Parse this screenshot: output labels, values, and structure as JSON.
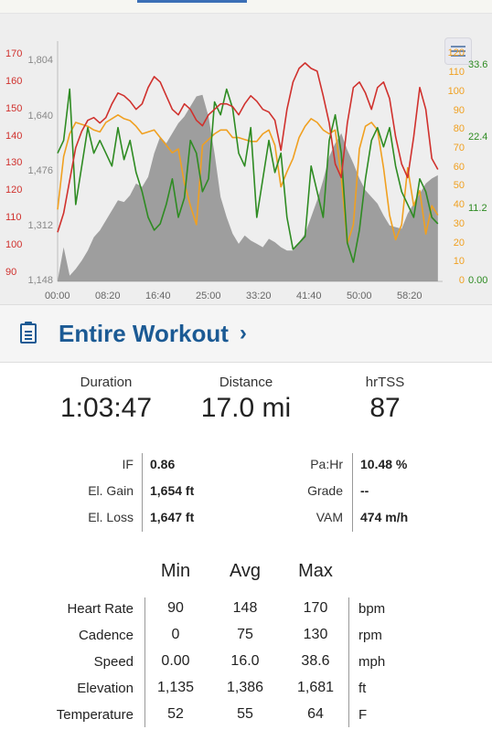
{
  "chart": {
    "hr_ticks": [
      "170",
      "160",
      "150",
      "140",
      "130",
      "120",
      "110",
      "100",
      "90"
    ],
    "elev_ticks": [
      "1,804",
      "1,640",
      "1,476",
      "1,312",
      "1,148"
    ],
    "cad_ticks": [
      "120",
      "110",
      "100",
      "90",
      "80",
      "70",
      "60",
      "50",
      "40",
      "30",
      "20",
      "10",
      "0"
    ],
    "speed_ticks": [
      "33.6",
      "22.4",
      "11.2",
      "0.00"
    ],
    "time_ticks": [
      "00:00",
      "08:20",
      "16:40",
      "25:00",
      "33:20",
      "41:40",
      "50:00",
      "58:20"
    ],
    "colors": {
      "hr": "#d0312d",
      "cadence": "#f0a020",
      "speed": "#2e8b22",
      "elevation": "#8f8f8f"
    }
  },
  "chart_data": {
    "type": "line",
    "x_unit": "time (mm:ss)",
    "xlim": [
      0,
      3827
    ],
    "x": [
      0,
      60,
      120,
      180,
      240,
      300,
      360,
      420,
      480,
      540,
      600,
      660,
      720,
      780,
      840,
      900,
      960,
      1020,
      1080,
      1140,
      1200,
      1260,
      1320,
      1380,
      1440,
      1500,
      1560,
      1620,
      1680,
      1740,
      1800,
      1860,
      1920,
      1980,
      2040,
      2100,
      2160,
      2220,
      2280,
      2340,
      2400,
      2460,
      2520,
      2580,
      2640,
      2700,
      2760,
      2820,
      2880,
      2940,
      3000,
      3060,
      3120,
      3180,
      3240,
      3300,
      3360,
      3420,
      3480,
      3540,
      3600,
      3660,
      3720,
      3780
    ],
    "series": [
      {
        "name": "Heart Rate",
        "axis": "hr",
        "ylim": [
          87,
          175
        ],
        "values": [
          105,
          112,
          124,
          136,
          142,
          146,
          147,
          145,
          147,
          152,
          156,
          155,
          153,
          150,
          152,
          158,
          162,
          160,
          155,
          150,
          148,
          152,
          150,
          146,
          144,
          148,
          150,
          152,
          152,
          151,
          148,
          152,
          155,
          153,
          150,
          149,
          146,
          135,
          150,
          160,
          165,
          167,
          165,
          164,
          155,
          145,
          130,
          125,
          145,
          158,
          160,
          156,
          150,
          158,
          160,
          154,
          140,
          130,
          125,
          140,
          158,
          150,
          132,
          128
        ]
      },
      {
        "name": "Cadence",
        "axis": "cadence",
        "ylim": [
          0,
          127
        ],
        "values": [
          38,
          66,
          78,
          84,
          83,
          82,
          80,
          79,
          84,
          86,
          88,
          86,
          85,
          82,
          78,
          79,
          80,
          76,
          72,
          68,
          70,
          52,
          40,
          30,
          72,
          75,
          78,
          80,
          80,
          76,
          76,
          75,
          74,
          74,
          78,
          80,
          72,
          50,
          58,
          65,
          76,
          82,
          86,
          84,
          80,
          78,
          80,
          55,
          20,
          30,
          70,
          82,
          84,
          80,
          60,
          35,
          22,
          30,
          60,
          40,
          48,
          25,
          40,
          35
        ]
      },
      {
        "name": "Speed",
        "axis": "speed",
        "ylim": [
          0,
          37.5
        ],
        "values": [
          20,
          22,
          30,
          12,
          18,
          24,
          20,
          22,
          20,
          18,
          24,
          19,
          22,
          17,
          14,
          10,
          8,
          9,
          12,
          16,
          10,
          13,
          22,
          20,
          14,
          16,
          28,
          26,
          30,
          27,
          20,
          18,
          24,
          10,
          16,
          22,
          17,
          20,
          10,
          5,
          6,
          7,
          18,
          14,
          10,
          22,
          26,
          20,
          6,
          3,
          8,
          16,
          22,
          24,
          21,
          24,
          18,
          14,
          12,
          10,
          16,
          14,
          10,
          9
        ]
      },
      {
        "name": "Elevation",
        "axis": "elevation",
        "ylim": [
          1148,
          1865
        ],
        "values": [
          1150,
          1250,
          1165,
          1185,
          1210,
          1240,
          1280,
          1300,
          1330,
          1360,
          1390,
          1385,
          1405,
          1440,
          1430,
          1460,
          1530,
          1580,
          1560,
          1590,
          1620,
          1640,
          1670,
          1700,
          1705,
          1640,
          1530,
          1400,
          1340,
          1290,
          1260,
          1285,
          1270,
          1260,
          1250,
          1275,
          1265,
          1250,
          1240,
          1240,
          1265,
          1290,
          1340,
          1390,
          1450,
          1520,
          1560,
          1590,
          1540,
          1500,
          1455,
          1420,
          1400,
          1380,
          1345,
          1315,
          1310,
          1305,
          1350,
          1380,
          1410,
          1440,
          1455,
          1465
        ]
      }
    ]
  },
  "header": {
    "title": "Entire Workout",
    "chevron": "›"
  },
  "summary": [
    {
      "label": "Duration",
      "value": "1:03:47"
    },
    {
      "label": "Distance",
      "value": "17.0 mi"
    },
    {
      "label": "hrTSS",
      "value": "87"
    }
  ],
  "metrics_left": [
    {
      "label": "IF",
      "value": "0.86"
    },
    {
      "label": "El. Gain",
      "value": "1,654 ft"
    },
    {
      "label": "El. Loss",
      "value": "1,647 ft"
    }
  ],
  "metrics_right": [
    {
      "label": "Pa:Hr",
      "value": "10.48 %"
    },
    {
      "label": "Grade",
      "value": "--"
    },
    {
      "label": "VAM",
      "value": "474 m/h"
    }
  ],
  "stats": {
    "columns": [
      "Min",
      "Avg",
      "Max"
    ],
    "rows": [
      {
        "label": "Heart Rate",
        "min": "90",
        "avg": "148",
        "max": "170",
        "unit": "bpm"
      },
      {
        "label": "Cadence",
        "min": "0",
        "avg": "75",
        "max": "130",
        "unit": "rpm"
      },
      {
        "label": "Speed",
        "min": "0.00",
        "avg": "16.0",
        "max": "38.6",
        "unit": "mph"
      },
      {
        "label": "Elevation",
        "min": "1,135",
        "avg": "1,386",
        "max": "1,681",
        "unit": "ft"
      },
      {
        "label": "Temperature",
        "min": "52",
        "avg": "55",
        "max": "64",
        "unit": "F"
      }
    ]
  }
}
